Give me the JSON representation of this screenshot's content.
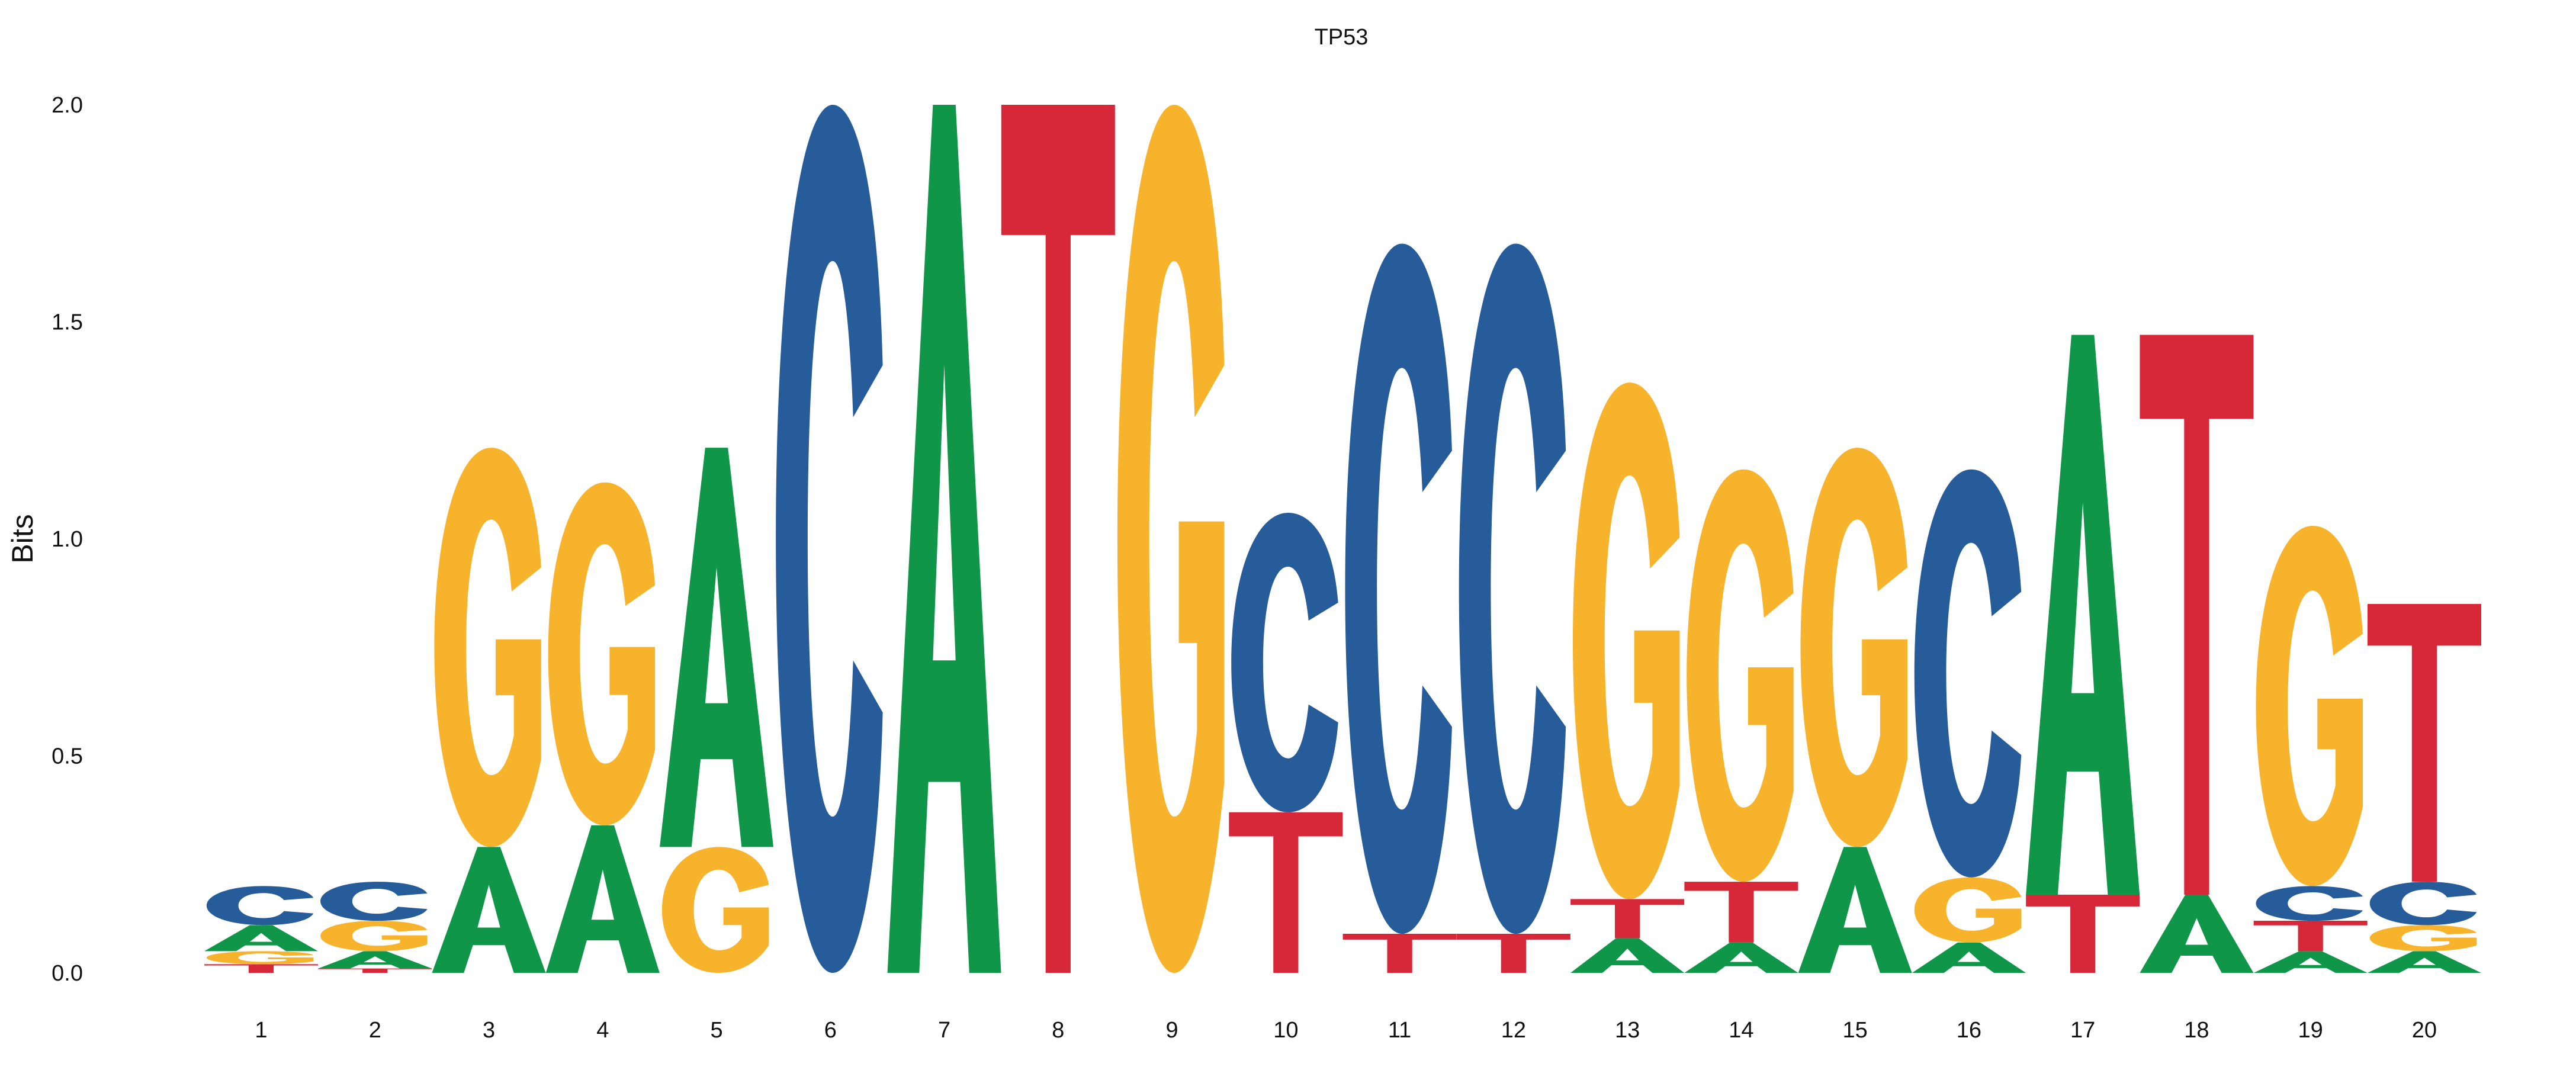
{
  "chart_data": {
    "type": "sequence-logo",
    "title": "TP53",
    "ylabel": "Bits",
    "xlabel": "",
    "ylim": [
      0,
      2
    ],
    "yticks": [
      "0.0",
      "0.5",
      "1.0",
      "1.5",
      "2.0"
    ],
    "grid": false,
    "legend": "none",
    "colors": {
      "A": "#109648",
      "C": "#255C99",
      "G": "#F7B32B",
      "T": "#D62839"
    },
    "positions": [
      {
        "label": "1",
        "stack": [
          {
            "base": "T",
            "bits": 0.02
          },
          {
            "base": "G",
            "bits": 0.03
          },
          {
            "base": "A",
            "bits": 0.06
          },
          {
            "base": "C",
            "bits": 0.09
          }
        ]
      },
      {
        "label": "2",
        "stack": [
          {
            "base": "T",
            "bits": 0.01
          },
          {
            "base": "A",
            "bits": 0.04
          },
          {
            "base": "G",
            "bits": 0.07
          },
          {
            "base": "C",
            "bits": 0.09
          }
        ]
      },
      {
        "label": "3",
        "stack": [
          {
            "base": "A",
            "bits": 0.29
          },
          {
            "base": "G",
            "bits": 0.92
          }
        ]
      },
      {
        "label": "4",
        "stack": [
          {
            "base": "A",
            "bits": 0.34
          },
          {
            "base": "G",
            "bits": 0.79
          }
        ]
      },
      {
        "label": "5",
        "stack": [
          {
            "base": "G",
            "bits": 0.29
          },
          {
            "base": "A",
            "bits": 0.92
          }
        ]
      },
      {
        "label": "6",
        "stack": [
          {
            "base": "C",
            "bits": 2.0
          }
        ]
      },
      {
        "label": "7",
        "stack": [
          {
            "base": "A",
            "bits": 2.0
          }
        ]
      },
      {
        "label": "8",
        "stack": [
          {
            "base": "T",
            "bits": 2.0
          }
        ]
      },
      {
        "label": "9",
        "stack": [
          {
            "base": "G",
            "bits": 2.0
          }
        ]
      },
      {
        "label": "10",
        "stack": [
          {
            "base": "T",
            "bits": 0.37
          },
          {
            "base": "C",
            "bits": 0.69
          }
        ]
      },
      {
        "label": "11",
        "stack": [
          {
            "base": "T",
            "bits": 0.09
          },
          {
            "base": "C",
            "bits": 1.59
          }
        ]
      },
      {
        "label": "12",
        "stack": [
          {
            "base": "T",
            "bits": 0.09
          },
          {
            "base": "C",
            "bits": 1.59
          }
        ]
      },
      {
        "label": "13",
        "stack": [
          {
            "base": "A",
            "bits": 0.08
          },
          {
            "base": "T",
            "bits": 0.09
          },
          {
            "base": "G",
            "bits": 1.19
          }
        ]
      },
      {
        "label": "14",
        "stack": [
          {
            "base": "A",
            "bits": 0.07
          },
          {
            "base": "T",
            "bits": 0.14
          },
          {
            "base": "G",
            "bits": 0.95
          }
        ]
      },
      {
        "label": "15",
        "stack": [
          {
            "base": "A",
            "bits": 0.29
          },
          {
            "base": "G",
            "bits": 0.92
          }
        ]
      },
      {
        "label": "16",
        "stack": [
          {
            "base": "A",
            "bits": 0.07
          },
          {
            "base": "G",
            "bits": 0.15
          },
          {
            "base": "C",
            "bits": 0.94
          }
        ]
      },
      {
        "label": "17",
        "stack": [
          {
            "base": "T",
            "bits": 0.18
          },
          {
            "base": "A",
            "bits": 1.29
          }
        ]
      },
      {
        "label": "18",
        "stack": [
          {
            "base": "A",
            "bits": 0.18
          },
          {
            "base": "T",
            "bits": 1.29
          }
        ]
      },
      {
        "label": "19",
        "stack": [
          {
            "base": "A",
            "bits": 0.05
          },
          {
            "base": "T",
            "bits": 0.07
          },
          {
            "base": "C",
            "bits": 0.08
          },
          {
            "base": "G",
            "bits": 0.83
          }
        ]
      },
      {
        "label": "20",
        "stack": [
          {
            "base": "A",
            "bits": 0.05
          },
          {
            "base": "G",
            "bits": 0.06
          },
          {
            "base": "C",
            "bits": 0.1
          },
          {
            "base": "T",
            "bits": 0.64
          }
        ]
      }
    ]
  }
}
